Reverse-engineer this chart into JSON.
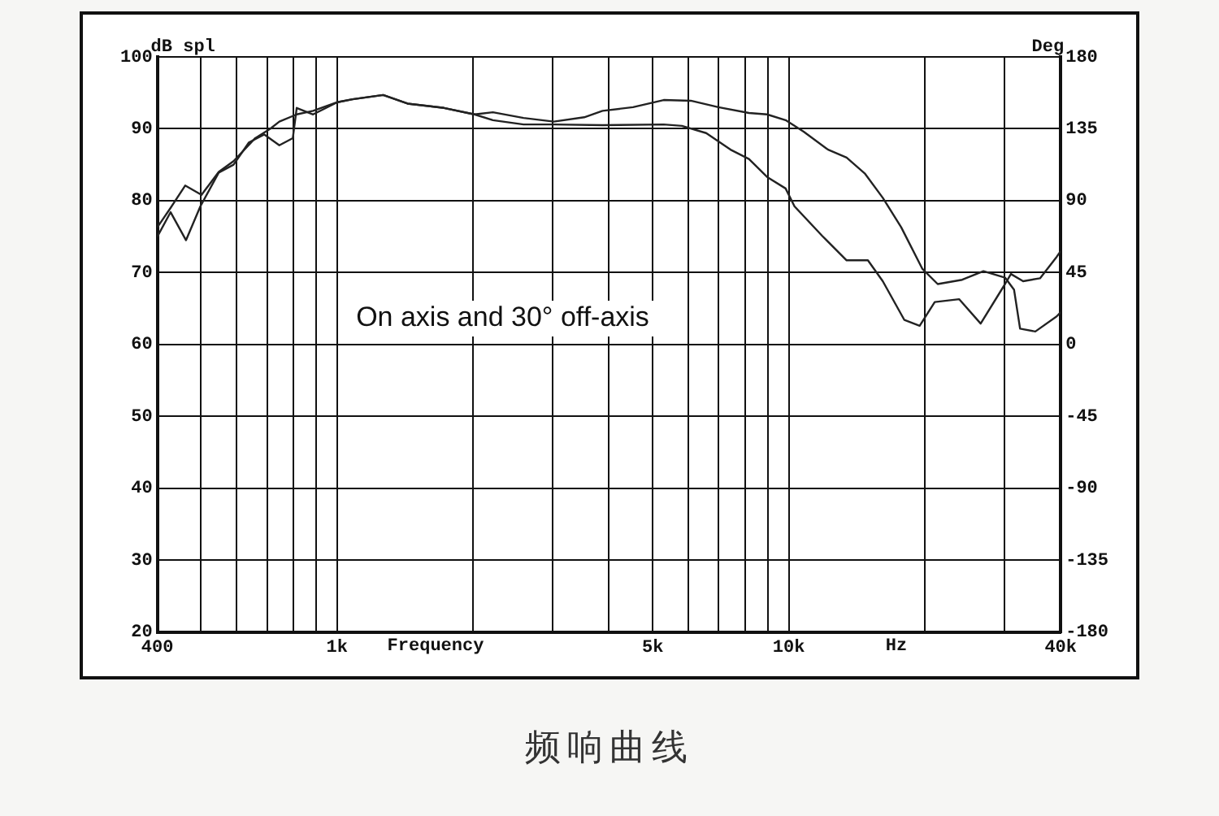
{
  "chart_data": {
    "type": "line",
    "title": "频响曲线",
    "xlabel": "Frequency",
    "ylabel": "dB spl",
    "y2label": "Deg",
    "annotations": [
      "On axis and 30° off-axis",
      "Hz"
    ],
    "log": "x",
    "grid": true,
    "marker": "none",
    "line_style": "solid",
    "xlim": [
      400,
      40000
    ],
    "ylim": [
      20,
      100
    ],
    "y2lim": [
      -180,
      180
    ],
    "xticks": [
      {
        "value": 400,
        "label": "400"
      },
      {
        "value": 500,
        "label": null
      },
      {
        "value": 600,
        "label": null
      },
      {
        "value": 700,
        "label": null
      },
      {
        "value": 800,
        "label": null
      },
      {
        "value": 900,
        "label": null
      },
      {
        "value": 1000,
        "label": "1k"
      },
      {
        "value": 2000,
        "label": null
      },
      {
        "value": 3000,
        "label": null
      },
      {
        "value": 4000,
        "label": null
      },
      {
        "value": 5000,
        "label": "5k"
      },
      {
        "value": 6000,
        "label": null
      },
      {
        "value": 7000,
        "label": null
      },
      {
        "value": 8000,
        "label": null
      },
      {
        "value": 9000,
        "label": null
      },
      {
        "value": 10000,
        "label": "10k"
      },
      {
        "value": 20000,
        "label": null
      },
      {
        "value": 30000,
        "label": null
      },
      {
        "value": 40000,
        "label": "40k"
      }
    ],
    "yticks": [
      20,
      30,
      40,
      50,
      60,
      70,
      80,
      90,
      100
    ],
    "y2ticks": [
      -180,
      -135,
      -90,
      -45,
      0,
      45,
      90,
      135,
      180
    ],
    "series": [
      {
        "color": "#222222",
        "x": [
          400,
          428,
          461,
          501,
          547,
          590,
          659,
          711,
          745,
          814,
          885,
          1002,
          1082,
          1265,
          1432,
          1725,
          2015,
          2213,
          2587,
          3019,
          3525,
          3870,
          4520,
          5285,
          6070,
          6985,
          8163,
          8953,
          9840,
          10790,
          12220,
          13430,
          14730,
          16150,
          17740,
          19770,
          21370,
          24210,
          26980,
          30120,
          31540,
          32520,
          35150,
          39200,
          40000
        ],
        "values": [
          76.3,
          79,
          82.1,
          80.8,
          84,
          85.5,
          88.7,
          90,
          91,
          92,
          92.5,
          93.7,
          94.1,
          94.7,
          93.5,
          92.9,
          92,
          92.3,
          91.5,
          91,
          91.6,
          92.5,
          93,
          94,
          93.9,
          93,
          92.2,
          92,
          91.2,
          89.6,
          87.1,
          86,
          83.8,
          80.4,
          76.3,
          70.5,
          68.4,
          69,
          70.2,
          69.3,
          67.6,
          62.2,
          61.8,
          63.9,
          64.5
        ]
      },
      {
        "color": "#222222",
        "x": [
          400,
          428,
          463,
          498,
          547,
          590,
          638,
          690,
          745,
          798,
          814,
          885,
          1002,
          1082,
          1265,
          1432,
          1725,
          2015,
          2213,
          2587,
          3019,
          3870,
          5285,
          5800,
          6565,
          7430,
          8163,
          8953,
          9840,
          10300,
          11860,
          13430,
          14970,
          16150,
          18030,
          19490,
          21050,
          23830,
          26600,
          30120,
          31040,
          33030,
          36000,
          39200,
          40000
        ],
        "values": [
          75,
          78.4,
          74.5,
          79.2,
          83.9,
          85,
          88.1,
          89.2,
          87.7,
          88.7,
          92.9,
          92,
          93.7,
          94.1,
          94.7,
          93.5,
          92.9,
          92,
          91.2,
          90.6,
          90.6,
          90.5,
          90.6,
          90.4,
          89.4,
          87.1,
          85.8,
          83.3,
          81.7,
          79.2,
          75.1,
          71.7,
          71.7,
          68.8,
          63.4,
          62.6,
          65.9,
          66.3,
          62.9,
          68.4,
          69.8,
          68.8,
          69.2,
          72.2,
          73
        ]
      }
    ]
  }
}
